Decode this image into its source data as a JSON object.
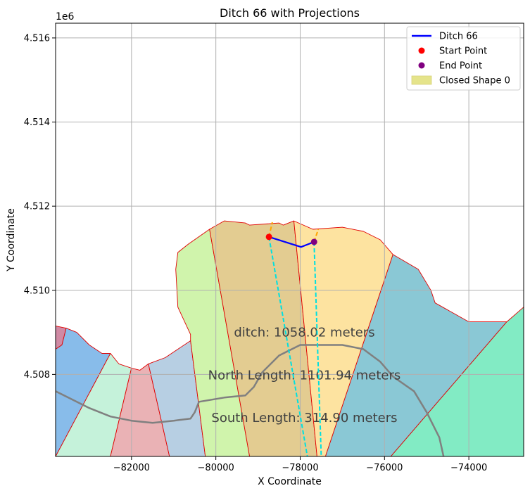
{
  "chart_data": {
    "type": "map",
    "title": "Ditch 66 with Projections",
    "xlabel": "X Coordinate",
    "ylabel": "Y Coordinate",
    "y_offset_label": "1e6",
    "xlim": [
      -83800,
      -72700
    ],
    "ylim": [
      4506.05,
      4516.35
    ],
    "x_ticks": [
      -82000,
      -80000,
      -78000,
      -76000,
      -74000
    ],
    "x_tick_labels": [
      "−82000",
      "−80000",
      "−78000",
      "−76000",
      "−74000"
    ],
    "y_ticks": [
      4508,
      4510,
      4512,
      4514,
      4516
    ],
    "y_tick_labels": [
      "4.508",
      "4.510",
      "4.512",
      "4.514",
      "4.516"
    ],
    "grid": true,
    "legend_position": "upper right",
    "legend": [
      {
        "label": "Ditch 66",
        "kind": "line",
        "color": "#0000ff"
      },
      {
        "label": "Start Point",
        "kind": "point",
        "color": "#ff0000"
      },
      {
        "label": "End Point",
        "kind": "point",
        "color": "#800080"
      },
      {
        "label": "Closed Shape 0",
        "kind": "patch",
        "color": "#e5e48b"
      }
    ],
    "ditch": {
      "color": "#0000ff",
      "points": [
        [
          -78740,
          4511.27
        ],
        [
          -77980,
          4511.03
        ],
        [
          -77670,
          4511.15
        ]
      ]
    },
    "start_point": {
      "x": -78740,
      "y": 4511.27,
      "color": "#ff0000"
    },
    "end_point": {
      "x": -77670,
      "y": 4511.15,
      "color": "#800080"
    },
    "projections": [
      {
        "color": "#00e0e0",
        "points": [
          [
            -78740,
            4511.27
          ],
          [
            -77830,
            4506.05
          ]
        ]
      },
      {
        "color": "#00e0e0",
        "points": [
          [
            -77670,
            4511.15
          ],
          [
            -77500,
            4506.05
          ]
        ]
      }
    ],
    "short_projections": [
      {
        "color": "#ffa500",
        "points": [
          [
            -78740,
            4511.27
          ],
          [
            -78660,
            4511.62
          ]
        ]
      },
      {
        "color": "#ffa500",
        "points": [
          [
            -77670,
            4511.15
          ],
          [
            -77570,
            4511.45
          ]
        ]
      }
    ],
    "road": {
      "color": "#808080",
      "points": [
        [
          -83800,
          4507.6
        ],
        [
          -83500,
          4507.45
        ],
        [
          -83000,
          4507.2
        ],
        [
          -82500,
          4507.0
        ],
        [
          -82000,
          4506.9
        ],
        [
          -81500,
          4506.85
        ],
        [
          -81000,
          4506.9
        ],
        [
          -80600,
          4506.95
        ],
        [
          -80500,
          4507.1
        ],
        [
          -80400,
          4507.35
        ],
        [
          -79800,
          4507.45
        ],
        [
          -79300,
          4507.5
        ],
        [
          -79100,
          4507.7
        ],
        [
          -78900,
          4508.05
        ],
        [
          -78500,
          4508.45
        ],
        [
          -78000,
          4508.7
        ],
        [
          -77000,
          4508.7
        ],
        [
          -76500,
          4508.6
        ],
        [
          -76100,
          4508.3
        ],
        [
          -75800,
          4507.95
        ],
        [
          -75300,
          4507.6
        ],
        [
          -75000,
          4507.1
        ],
        [
          -74700,
          4506.5
        ],
        [
          -74600,
          4506.05
        ]
      ]
    },
    "annotations": [
      {
        "text": "ditch: 1058.02 meters",
        "x": -77900,
        "y": 4509.0
      },
      {
        "text": "North Length: 1101.94 meters",
        "x": -77900,
        "y": 4507.98
      },
      {
        "text": "South Length: 314.90 meters",
        "x": -77900,
        "y": 4506.97
      }
    ],
    "shapes": [
      {
        "color": "#d08aa4",
        "points": [
          [
            -83800,
            4506.05
          ],
          [
            -83800,
            4509.15
          ],
          [
            -83550,
            4509.1
          ],
          [
            -83650,
            4508.7
          ],
          [
            -83800,
            4508.6
          ]
        ]
      },
      {
        "color": "#88bcea",
        "points": [
          [
            -83800,
            4508.6
          ],
          [
            -83650,
            4508.7
          ],
          [
            -83550,
            4509.1
          ],
          [
            -83300,
            4509.0
          ],
          [
            -83000,
            4508.7
          ],
          [
            -82700,
            4508.5
          ],
          [
            -82500,
            4508.5
          ],
          [
            -83800,
            4506.05
          ]
        ]
      },
      {
        "color": "#c5f2da",
        "points": [
          [
            -83800,
            4506.05
          ],
          [
            -82500,
            4508.5
          ],
          [
            -82300,
            4508.25
          ],
          [
            -82000,
            4508.15
          ],
          [
            -82500,
            4506.05
          ]
        ]
      },
      {
        "color": "#eab2b5",
        "points": [
          [
            -82500,
            4506.05
          ],
          [
            -82000,
            4508.15
          ],
          [
            -81800,
            4508.1
          ],
          [
            -81600,
            4508.25
          ],
          [
            -81100,
            4506.05
          ]
        ]
      },
      {
        "color": "#b7cfe3",
        "points": [
          [
            -81100,
            4506.05
          ],
          [
            -81600,
            4508.25
          ],
          [
            -81200,
            4508.4
          ],
          [
            -80900,
            4508.6
          ],
          [
            -80600,
            4508.8
          ],
          [
            -80250,
            4506.05
          ]
        ]
      },
      {
        "color": "#d0f4ac",
        "points": [
          [
            -80250,
            4506.05
          ],
          [
            -80600,
            4508.8
          ],
          [
            -80600,
            4508.95
          ],
          [
            -80900,
            4509.6
          ],
          [
            -80950,
            4510.5
          ],
          [
            -80900,
            4510.9
          ],
          [
            -80650,
            4511.1
          ],
          [
            -80150,
            4511.45
          ],
          [
            -79200,
            4506.05
          ]
        ]
      },
      {
        "color": "#e3cc91",
        "points": [
          [
            -79200,
            4506.05
          ],
          [
            -80150,
            4511.45
          ],
          [
            -79800,
            4511.65
          ],
          [
            -79300,
            4511.6
          ],
          [
            -79200,
            4511.55
          ],
          [
            -78500,
            4511.6
          ],
          [
            -78400,
            4511.55
          ],
          [
            -78150,
            4511.65
          ],
          [
            -77600,
            4506.05
          ]
        ]
      },
      {
        "color": "#fde3a0",
        "points": [
          [
            -77600,
            4506.05
          ],
          [
            -78150,
            4511.65
          ],
          [
            -77700,
            4511.45
          ],
          [
            -77000,
            4511.5
          ],
          [
            -76500,
            4511.4
          ],
          [
            -76100,
            4511.2
          ],
          [
            -75800,
            4510.85
          ],
          [
            -77400,
            4506.05
          ]
        ]
      },
      {
        "color": "#8ac8d5",
        "points": [
          [
            -77400,
            4506.05
          ],
          [
            -75800,
            4510.85
          ],
          [
            -75200,
            4510.5
          ],
          [
            -74900,
            4510.0
          ],
          [
            -74800,
            4509.7
          ],
          [
            -74000,
            4509.25
          ],
          [
            -73100,
            4509.25
          ],
          [
            -75850,
            4506.05
          ]
        ]
      },
      {
        "color": "#82ebc4",
        "points": [
          [
            -75850,
            4506.05
          ],
          [
            -73100,
            4509.25
          ],
          [
            -72700,
            4509.6
          ],
          [
            -72700,
            4506.05
          ]
        ]
      }
    ]
  }
}
